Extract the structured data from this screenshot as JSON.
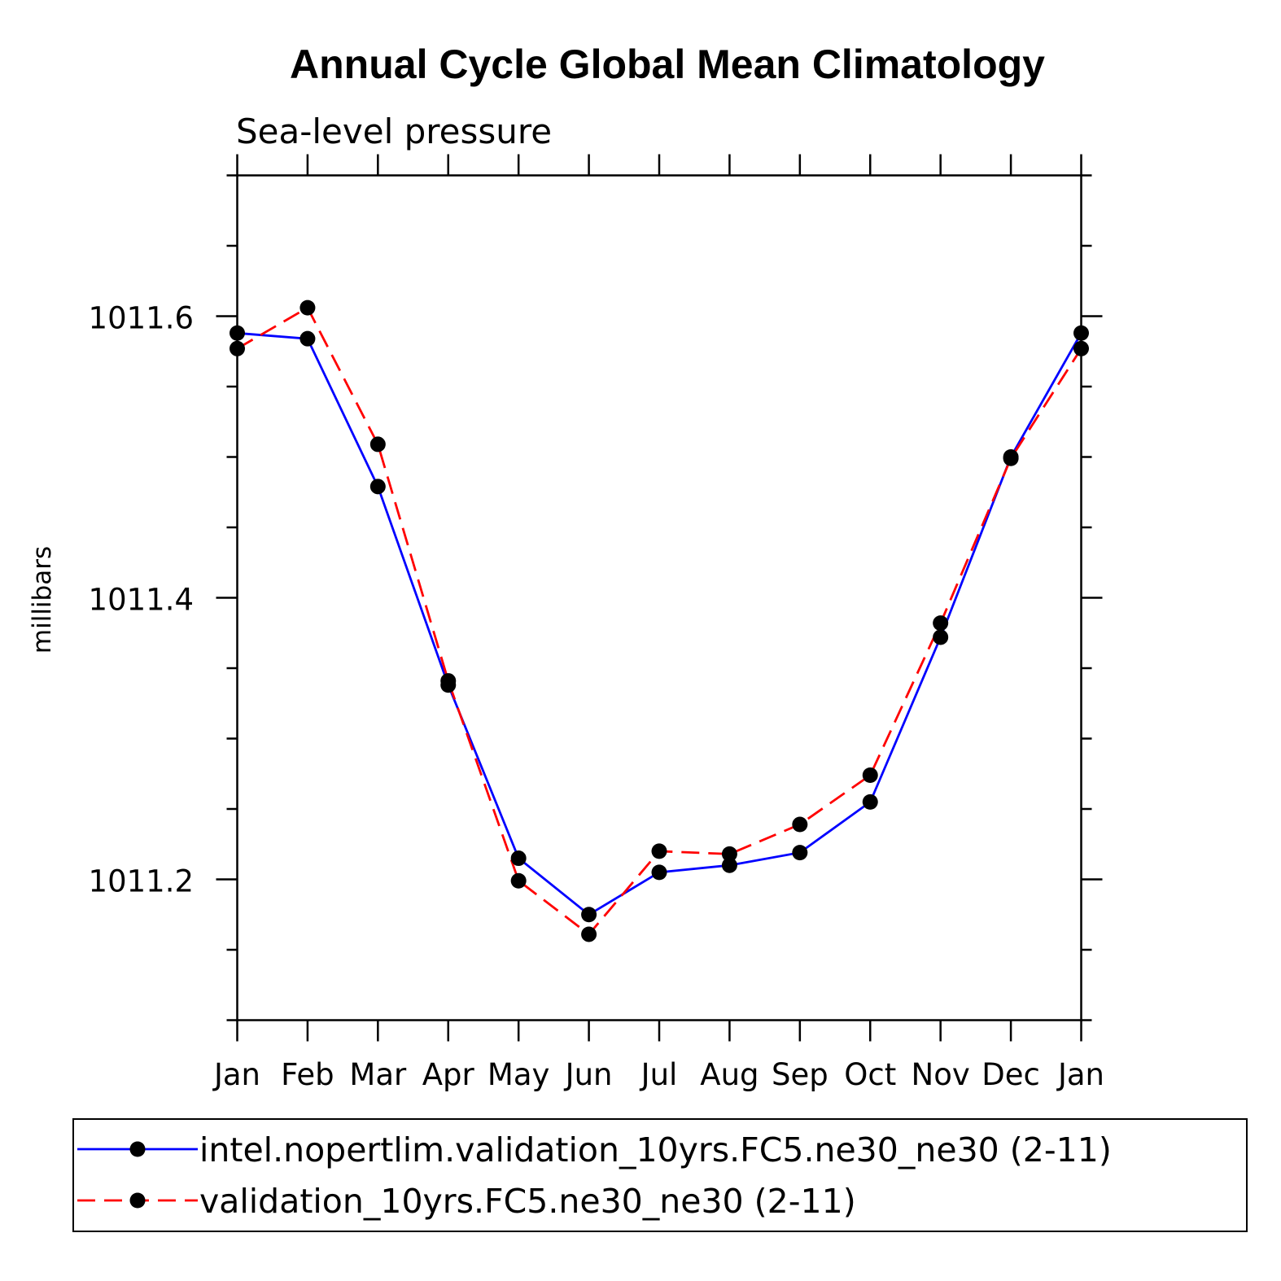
{
  "chart_data": {
    "type": "line",
    "title": "Annual Cycle Global Mean Climatology",
    "subtitle": "Sea-level pressure",
    "xlabel": "",
    "ylabel": "millibars",
    "categories": [
      "Jan",
      "Feb",
      "Mar",
      "Apr",
      "May",
      "Jun",
      "Jul",
      "Aug",
      "Sep",
      "Oct",
      "Nov",
      "Dec",
      "Jan"
    ],
    "yticks": [
      1011.2,
      1011.4,
      1011.6
    ],
    "ytick_labels": [
      "1011.2",
      "1011.4",
      "1011.6"
    ],
    "ylim": [
      1011.1,
      1011.7
    ],
    "series": [
      {
        "name": "intel.nopertlim.validation_10yrs.FC5.ne30_ne30 (2-11)",
        "color": "#0000ff",
        "dash": "solid",
        "values": [
          1011.588,
          1011.584,
          1011.479,
          1011.338,
          1011.215,
          1011.175,
          1011.205,
          1011.21,
          1011.219,
          1011.255,
          1011.372,
          1011.5,
          1011.588
        ]
      },
      {
        "name": "validation_10yrs.FC5.ne30_ne30 (2-11)",
        "color": "#ff0000",
        "dash": "dashed",
        "values": [
          1011.577,
          1011.606,
          1011.509,
          1011.341,
          1011.199,
          1011.161,
          1011.22,
          1011.218,
          1011.239,
          1011.274,
          1011.382,
          1011.499,
          1011.577
        ]
      }
    ],
    "legend_position": "bottom",
    "marker": "filled-circle",
    "marker_color": "#000000"
  }
}
